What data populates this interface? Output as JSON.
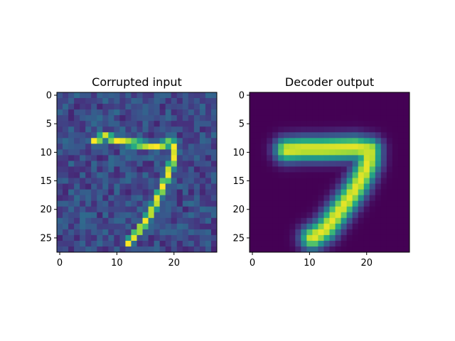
{
  "chart_data": [
    {
      "type": "heatmap",
      "title": "Corrupted input",
      "xlabel": "",
      "ylabel": "",
      "rows": 28,
      "cols": 28,
      "xlim": [
        -0.5,
        27.5
      ],
      "ylim": [
        27.5,
        -0.5
      ],
      "xticks": [
        0,
        10,
        20
      ],
      "yticks": [
        0,
        5,
        10,
        15,
        20,
        25
      ],
      "colormap": "viridis",
      "noise_level": 0.22,
      "noise_std": 0.13,
      "grid": false,
      "stroke_points": [
        [
          6,
          8
        ],
        [
          8,
          7.2
        ],
        [
          10,
          8
        ],
        [
          14,
          8.6
        ],
        [
          17,
          9
        ],
        [
          19,
          8.4
        ],
        [
          20,
          8.6
        ],
        [
          20.2,
          10
        ],
        [
          19.6,
          12
        ],
        [
          18.7,
          14.5
        ],
        [
          17.6,
          17
        ],
        [
          16.3,
          20
        ],
        [
          14.8,
          22.5
        ],
        [
          13.2,
          24.5
        ],
        [
          12,
          26
        ]
      ],
      "peak": 1.0
    },
    {
      "type": "heatmap",
      "title": "Decoder output",
      "xlabel": "",
      "ylabel": "",
      "rows": 28,
      "cols": 28,
      "xlim": [
        -0.5,
        27.5
      ],
      "ylim": [
        27.5,
        -0.5
      ],
      "xticks": [
        0,
        10,
        20
      ],
      "yticks": [
        0,
        5,
        10,
        15,
        20,
        25
      ],
      "colormap": "viridis",
      "noise_level": 0.0,
      "noise_std": 0.0,
      "grid": false,
      "stroke_points": [
        [
          6,
          9.6
        ],
        [
          9,
          9.4
        ],
        [
          12,
          9.4
        ],
        [
          15,
          9.3
        ],
        [
          18,
          9.2
        ],
        [
          20.5,
          9.6
        ],
        [
          20.4,
          11.5
        ],
        [
          19.6,
          13.5
        ],
        [
          18.3,
          16
        ],
        [
          16.6,
          18.5
        ],
        [
          14.7,
          21
        ],
        [
          12.8,
          23.5
        ],
        [
          10.5,
          25
        ]
      ],
      "peak": 0.97
    }
  ]
}
